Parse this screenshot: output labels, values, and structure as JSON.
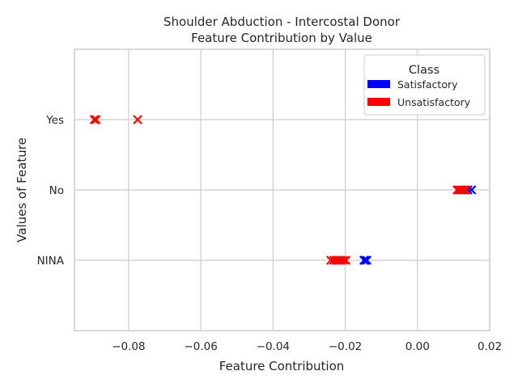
{
  "chart_data": {
    "type": "scatter",
    "title_lines": [
      "Shoulder Abduction - Intercostal Donor",
      "Feature Contribution by Value"
    ],
    "xlabel": "Feature Contribution",
    "ylabel": "Values of Feature",
    "xlim": [
      -0.095,
      0.02
    ],
    "x_ticks": [
      -0.08,
      -0.06,
      -0.04,
      -0.02,
      0.0,
      0.02
    ],
    "x_tick_labels": [
      "−0.08",
      "−0.06",
      "−0.04",
      "−0.02",
      "0.00",
      "0.02"
    ],
    "categories": [
      "Yes",
      "No",
      "NINA"
    ],
    "grid": true,
    "marker": "x",
    "legend": {
      "title": "Class",
      "placement": "top-right",
      "entries": [
        {
          "label": "Satisfactory",
          "color": "#0000ff"
        },
        {
          "label": "Unsatisfactory",
          "color": "#ff0000"
        }
      ]
    },
    "series": [
      {
        "name": "Satisfactory",
        "color": "#0000ff",
        "points": [
          {
            "x": 0.015,
            "y": "No"
          },
          {
            "x": 0.014,
            "y": "No"
          },
          {
            "x": 0.013,
            "y": "No"
          },
          {
            "x": -0.014,
            "y": "NINA"
          },
          {
            "x": -0.0145,
            "y": "NINA"
          },
          {
            "x": -0.0148,
            "y": "NINA"
          }
        ]
      },
      {
        "name": "Unsatisfactory",
        "color": "#ff0000",
        "points": [
          {
            "x": -0.0895,
            "y": "Yes"
          },
          {
            "x": -0.089,
            "y": "Yes"
          },
          {
            "x": -0.0775,
            "y": "Yes"
          },
          {
            "x": 0.011,
            "y": "No"
          },
          {
            "x": 0.0115,
            "y": "No"
          },
          {
            "x": 0.012,
            "y": "No"
          },
          {
            "x": 0.0125,
            "y": "No"
          },
          {
            "x": 0.013,
            "y": "No"
          },
          {
            "x": 0.0135,
            "y": "No"
          },
          {
            "x": -0.024,
            "y": "NINA"
          },
          {
            "x": -0.0232,
            "y": "NINA"
          },
          {
            "x": -0.0225,
            "y": "NINA"
          },
          {
            "x": -0.0218,
            "y": "NINA"
          },
          {
            "x": -0.0212,
            "y": "NINA"
          },
          {
            "x": -0.0205,
            "y": "NINA"
          },
          {
            "x": -0.0198,
            "y": "NINA"
          }
        ]
      }
    ]
  }
}
